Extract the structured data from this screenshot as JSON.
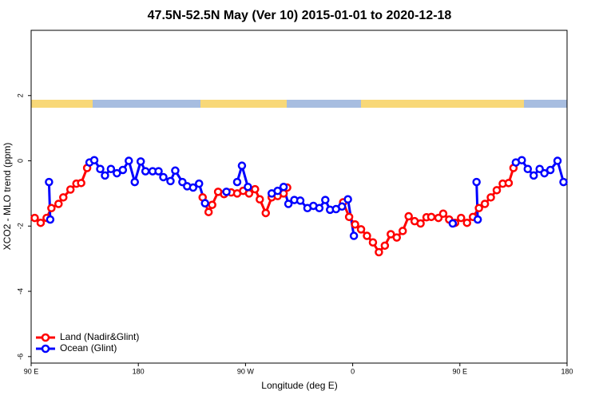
{
  "chart_data": {
    "type": "line",
    "title": "47.5N-52.5N May (Ver 10)   2015-01-01 to 2020-12-18",
    "xlabel": "Longitude (deg E)",
    "ylabel": "XCO2 - MLO trend (ppm)",
    "xlim": [
      90,
      540
    ],
    "xticks": [
      {
        "value": 90,
        "label": "90 E"
      },
      {
        "value": 180,
        "label": "180"
      },
      {
        "value": 270,
        "label": "90 W"
      },
      {
        "value": 360,
        "label": "0"
      },
      {
        "value": 450,
        "label": "90 E"
      },
      {
        "value": 540,
        "label": "180"
      }
    ],
    "ylim": [
      -6.2,
      4
    ],
    "yticks": [
      2,
      0,
      -2,
      -4,
      -6
    ],
    "legend": "bottom-left",
    "series": [
      {
        "name": "Land (Nadir&Glint)",
        "color": "#ff0000",
        "x": [
          93,
          98,
          103,
          107,
          113,
          117,
          123,
          128,
          132,
          137,
          null,
          234,
          239,
          242,
          247,
          252,
          258,
          263,
          268,
          273,
          278,
          282,
          287,
          292,
          297,
          302,
          305,
          null,
          352,
          357,
          362,
          367,
          372,
          377,
          382,
          387,
          392,
          397,
          402,
          407,
          412,
          417,
          422,
          426,
          432,
          436,
          441,
          446,
          451,
          456,
          461,
          466,
          471,
          476,
          481,
          486,
          491,
          495
        ],
        "values": [
          -1.75,
          -1.9,
          -1.75,
          -1.45,
          -1.32,
          -1.12,
          -0.88,
          -0.7,
          -0.68,
          -0.22,
          null,
          -1.12,
          -1.57,
          -1.35,
          -0.95,
          -1.02,
          -0.97,
          -1.0,
          -0.92,
          -1.0,
          -0.87,
          -1.18,
          -1.6,
          -1.12,
          -1.08,
          -1.0,
          -0.82,
          null,
          -1.27,
          -1.72,
          -1.95,
          -2.1,
          -2.3,
          -2.5,
          -2.8,
          -2.6,
          -2.25,
          -2.35,
          -2.15,
          -1.7,
          -1.85,
          -1.92,
          -1.73,
          -1.72,
          -1.75,
          -1.62,
          -1.8,
          -1.9,
          -1.75,
          -1.9,
          -1.72,
          -1.45,
          -1.32,
          -1.12,
          -0.9,
          -0.7,
          -0.68,
          -0.22
        ]
      },
      {
        "name": "Ocean (Glint)",
        "color": "#0000ff",
        "x": [
          105,
          106,
          null,
          139,
          143,
          148,
          152,
          157,
          162,
          167,
          172,
          177,
          182,
          186,
          192,
          197,
          201,
          207,
          211,
          217,
          221,
          226,
          231,
          236,
          null,
          254,
          null,
          263,
          267,
          272,
          null,
          292,
          297,
          302,
          306,
          311,
          316,
          322,
          327,
          332,
          337,
          341,
          346,
          351,
          356,
          361,
          null,
          444,
          null,
          464,
          465,
          null,
          497,
          502,
          507,
          512,
          517,
          521,
          526,
          532,
          537
        ],
        "values": [
          -0.65,
          -1.8,
          null,
          -0.05,
          0.02,
          -0.25,
          -0.45,
          -0.25,
          -0.38,
          -0.28,
          0.0,
          -0.65,
          -0.02,
          -0.32,
          -0.32,
          -0.32,
          -0.5,
          -0.62,
          -0.3,
          -0.65,
          -0.78,
          -0.82,
          -0.7,
          -1.3,
          null,
          -0.95,
          null,
          -0.65,
          -0.15,
          -0.8,
          null,
          -1.0,
          -0.92,
          -0.8,
          -1.32,
          -1.2,
          -1.22,
          -1.45,
          -1.38,
          -1.45,
          -1.2,
          -1.5,
          -1.48,
          -1.4,
          -1.18,
          -2.3,
          null,
          -1.92,
          null,
          -0.65,
          -1.8,
          null,
          -0.05,
          0.02,
          -0.25,
          -0.45,
          -0.25,
          -0.38,
          -0.28,
          0.0,
          -0.65
        ]
      }
    ]
  }
}
